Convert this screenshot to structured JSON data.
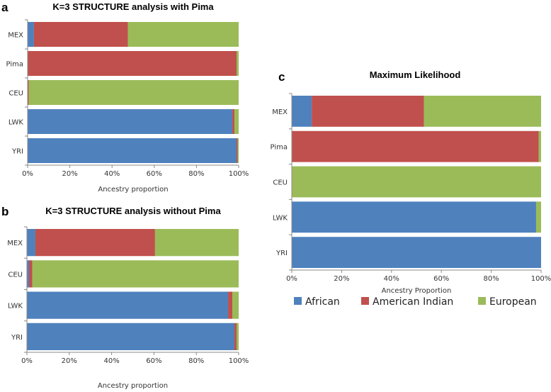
{
  "legend": {
    "series_names": [
      "African",
      "American Indian",
      "European"
    ],
    "colors": [
      "#4F81BD",
      "#C0504D",
      "#9BBB59"
    ]
  },
  "chart_data": [
    {
      "panel": "a",
      "type": "bar",
      "orientation": "horizontal",
      "stacked": true,
      "title": "K=3 STRUCTURE analysis with Pima",
      "xlabel": "Ancestry proportion",
      "xlim": [
        0,
        100
      ],
      "xticks": [
        "0%",
        "20%",
        "40%",
        "60%",
        "80%",
        "100%"
      ],
      "categories": [
        "MEX",
        "Pima",
        "CEU",
        "LWK",
        "YRI"
      ],
      "series": [
        {
          "name": "African",
          "values": [
            3,
            0,
            0,
            97,
            99
          ]
        },
        {
          "name": "American Indian",
          "values": [
            44.5,
            99,
            0.5,
            1,
            0.5
          ]
        },
        {
          "name": "European",
          "values": [
            52.5,
            1,
            99.5,
            2,
            0.5
          ]
        }
      ]
    },
    {
      "panel": "b",
      "type": "bar",
      "orientation": "horizontal",
      "stacked": true,
      "title": "K=3 STRUCTURE analysis without Pima",
      "xlabel": "Ancestry proportion",
      "xlim": [
        0,
        100
      ],
      "xticks": [
        "0%",
        "20%",
        "40%",
        "60%",
        "80%",
        "100%"
      ],
      "categories": [
        "MEX",
        "CEU",
        "LWK",
        "YRI"
      ],
      "series": [
        {
          "name": "African",
          "values": [
            4,
            1,
            95,
            98
          ]
        },
        {
          "name": "American Indian",
          "values": [
            56.5,
            1.5,
            2,
            1
          ]
        },
        {
          "name": "European",
          "values": [
            39.5,
            97.5,
            3,
            1
          ]
        }
      ]
    },
    {
      "panel": "c",
      "type": "bar",
      "orientation": "horizontal",
      "stacked": true,
      "title": "Maximum Likelihood",
      "xlabel": "Ancestry Proportion",
      "xlim": [
        0,
        100
      ],
      "xticks": [
        "0%",
        "20%",
        "40%",
        "60%",
        "80%",
        "100%"
      ],
      "categories": [
        "MEX",
        "Pima",
        "CEU",
        "LWK",
        "YRI"
      ],
      "series": [
        {
          "name": "African",
          "values": [
            8,
            0,
            0,
            98,
            100
          ]
        },
        {
          "name": "American Indian",
          "values": [
            45,
            99,
            0,
            0,
            0
          ]
        },
        {
          "name": "European",
          "values": [
            47,
            1,
            100,
            2,
            0
          ]
        }
      ]
    }
  ]
}
